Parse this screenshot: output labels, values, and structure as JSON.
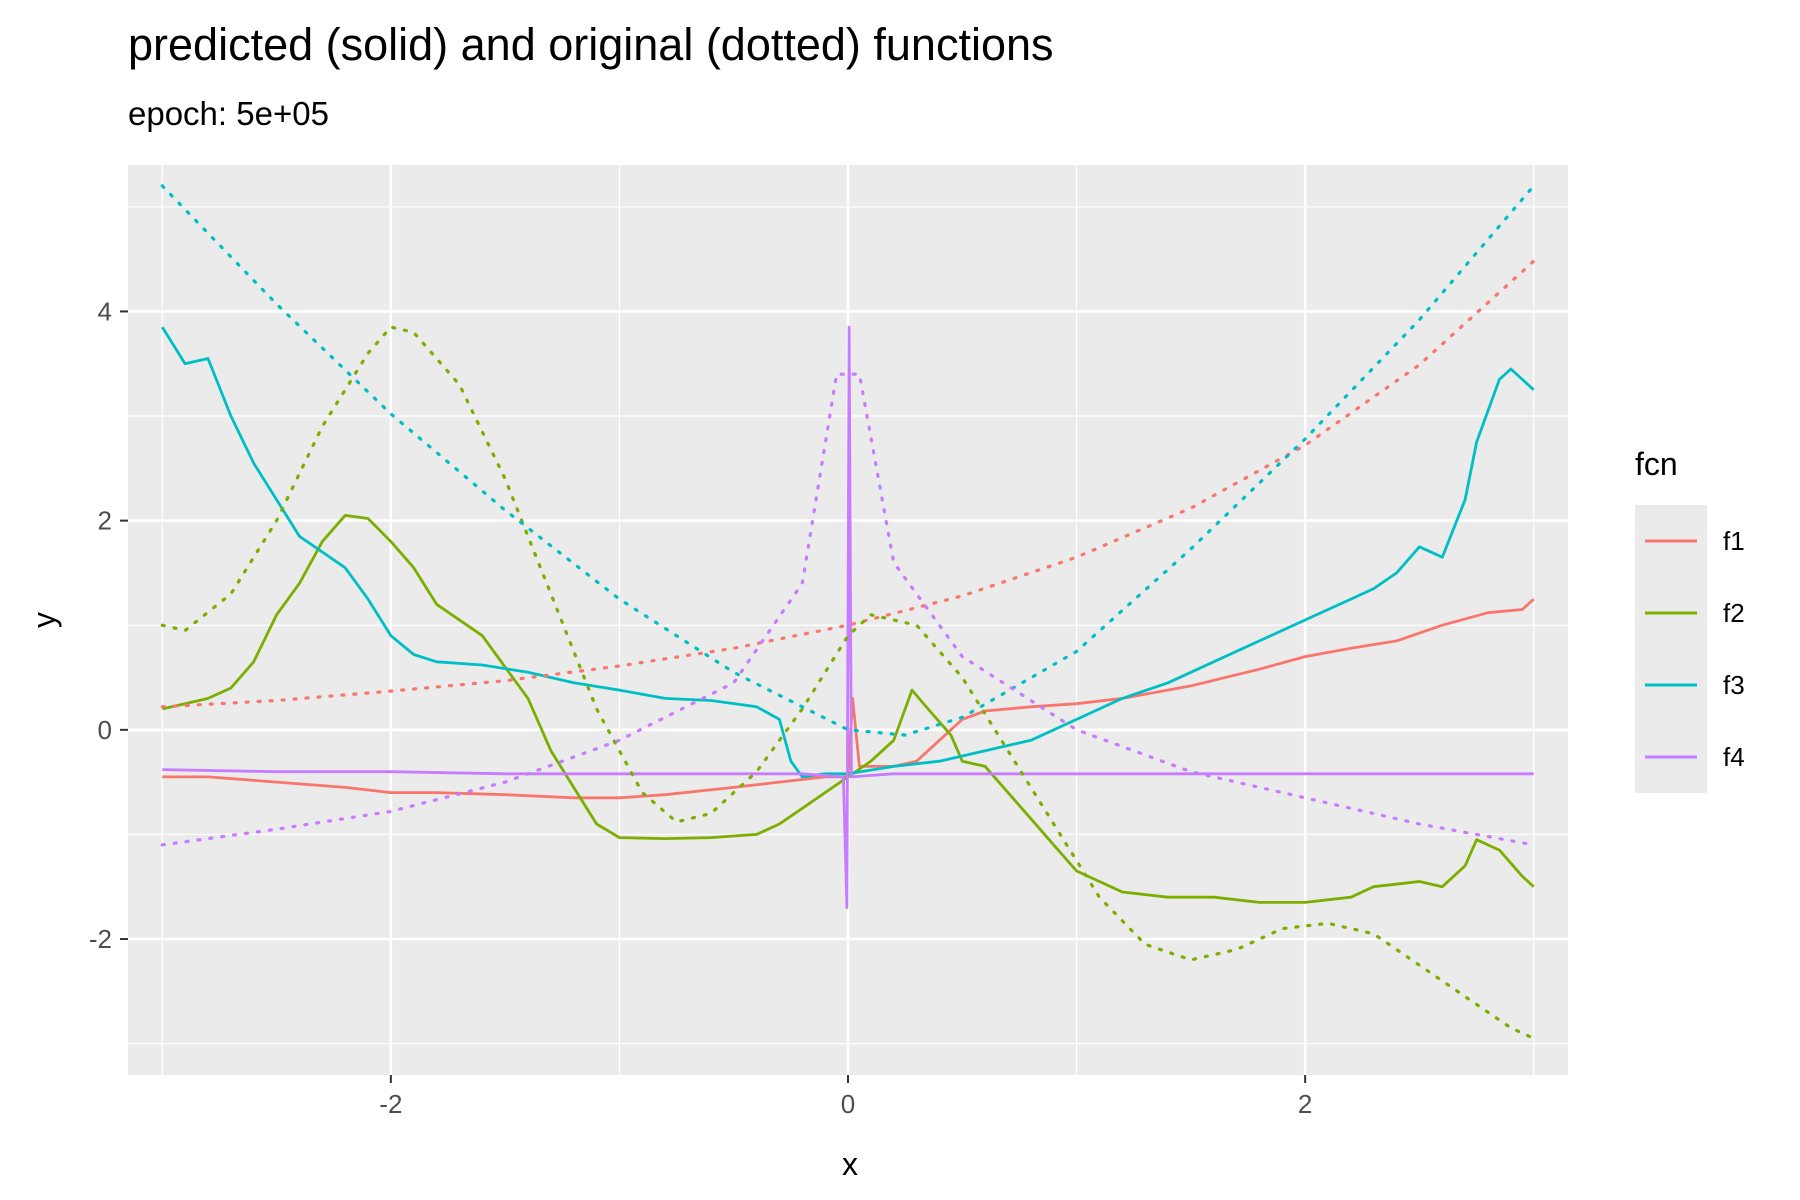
{
  "chart_data": {
    "type": "line",
    "title": "predicted (solid) and original (dotted) functions",
    "subtitle": "epoch: 5e+05",
    "xlabel": "x",
    "ylabel": "y",
    "xlim": [
      -3.15,
      3.15
    ],
    "ylim": [
      -3.3,
      5.4
    ],
    "x_ticks": [
      -2,
      0,
      2
    ],
    "x_tick_labels": [
      "-2",
      "0",
      "2"
    ],
    "y_ticks": [
      -2,
      0,
      2,
      4
    ],
    "y_tick_labels": [
      "-2",
      "0",
      "2",
      "4"
    ],
    "grid": true,
    "legend": {
      "title": "fcn",
      "position": "right"
    },
    "colors": {
      "f1": "#F8766D",
      "f2": "#7CAE00",
      "f3": "#00BFC4",
      "f4": "#C77CFF"
    },
    "series": [
      {
        "name": "f1",
        "style": "solid",
        "points": [
          [
            -3,
            -0.45
          ],
          [
            -2.8,
            -0.45
          ],
          [
            -2.5,
            -0.5
          ],
          [
            -2.2,
            -0.55
          ],
          [
            -2.0,
            -0.6
          ],
          [
            -1.8,
            -0.6
          ],
          [
            -1.5,
            -0.62
          ],
          [
            -1.2,
            -0.65
          ],
          [
            -1.0,
            -0.65
          ],
          [
            -0.8,
            -0.62
          ],
          [
            -0.5,
            -0.55
          ],
          [
            -0.3,
            -0.5
          ],
          [
            -0.1,
            -0.45
          ],
          [
            0,
            -0.45
          ],
          [
            0.02,
            0.3
          ],
          [
            0.05,
            -0.35
          ],
          [
            0.2,
            -0.35
          ],
          [
            0.3,
            -0.3
          ],
          [
            0.4,
            -0.1
          ],
          [
            0.5,
            0.1
          ],
          [
            0.6,
            0.18
          ],
          [
            0.8,
            0.22
          ],
          [
            1.0,
            0.25
          ],
          [
            1.2,
            0.3
          ],
          [
            1.5,
            0.42
          ],
          [
            1.8,
            0.58
          ],
          [
            2.0,
            0.7
          ],
          [
            2.2,
            0.78
          ],
          [
            2.4,
            0.85
          ],
          [
            2.6,
            1.0
          ],
          [
            2.8,
            1.12
          ],
          [
            2.95,
            1.15
          ],
          [
            3.0,
            1.25
          ]
        ]
      },
      {
        "name": "f2",
        "style": "solid",
        "points": [
          [
            -3,
            0.2
          ],
          [
            -2.9,
            0.25
          ],
          [
            -2.8,
            0.3
          ],
          [
            -2.7,
            0.4
          ],
          [
            -2.6,
            0.65
          ],
          [
            -2.5,
            1.1
          ],
          [
            -2.4,
            1.4
          ],
          [
            -2.3,
            1.8
          ],
          [
            -2.2,
            2.05
          ],
          [
            -2.1,
            2.02
          ],
          [
            -2.0,
            1.8
          ],
          [
            -1.9,
            1.55
          ],
          [
            -1.8,
            1.2
          ],
          [
            -1.6,
            0.9
          ],
          [
            -1.5,
            0.6
          ],
          [
            -1.4,
            0.3
          ],
          [
            -1.3,
            -0.2
          ],
          [
            -1.2,
            -0.55
          ],
          [
            -1.1,
            -0.9
          ],
          [
            -1.0,
            -1.03
          ],
          [
            -0.8,
            -1.04
          ],
          [
            -0.6,
            -1.03
          ],
          [
            -0.4,
            -1.0
          ],
          [
            -0.3,
            -0.9
          ],
          [
            -0.2,
            -0.75
          ],
          [
            -0.1,
            -0.6
          ],
          [
            0,
            -0.45
          ],
          [
            0.1,
            -0.3
          ],
          [
            0.2,
            -0.1
          ],
          [
            0.28,
            0.38
          ],
          [
            0.35,
            0.2
          ],
          [
            0.45,
            -0.05
          ],
          [
            0.5,
            -0.3
          ],
          [
            0.6,
            -0.35
          ],
          [
            0.7,
            -0.6
          ],
          [
            0.8,
            -0.85
          ],
          [
            0.9,
            -1.1
          ],
          [
            1.0,
            -1.35
          ],
          [
            1.2,
            -1.55
          ],
          [
            1.4,
            -1.6
          ],
          [
            1.6,
            -1.6
          ],
          [
            1.8,
            -1.65
          ],
          [
            2.0,
            -1.65
          ],
          [
            2.2,
            -1.6
          ],
          [
            2.3,
            -1.5
          ],
          [
            2.5,
            -1.45
          ],
          [
            2.6,
            -1.5
          ],
          [
            2.7,
            -1.3
          ],
          [
            2.75,
            -1.05
          ],
          [
            2.85,
            -1.15
          ],
          [
            2.95,
            -1.4
          ],
          [
            3.0,
            -1.5
          ]
        ]
      },
      {
        "name": "f3",
        "style": "solid",
        "points": [
          [
            -3,
            3.85
          ],
          [
            -2.9,
            3.5
          ],
          [
            -2.8,
            3.55
          ],
          [
            -2.7,
            3.0
          ],
          [
            -2.6,
            2.55
          ],
          [
            -2.5,
            2.2
          ],
          [
            -2.4,
            1.85
          ],
          [
            -2.3,
            1.7
          ],
          [
            -2.2,
            1.55
          ],
          [
            -2.1,
            1.25
          ],
          [
            -2.0,
            0.9
          ],
          [
            -1.9,
            0.72
          ],
          [
            -1.8,
            0.65
          ],
          [
            -1.6,
            0.62
          ],
          [
            -1.4,
            0.55
          ],
          [
            -1.2,
            0.45
          ],
          [
            -1.0,
            0.38
          ],
          [
            -0.8,
            0.3
          ],
          [
            -0.6,
            0.28
          ],
          [
            -0.4,
            0.22
          ],
          [
            -0.3,
            0.1
          ],
          [
            -0.25,
            -0.3
          ],
          [
            -0.2,
            -0.45
          ],
          [
            -0.1,
            -0.42
          ],
          [
            0,
            -0.42
          ],
          [
            0.2,
            -0.35
          ],
          [
            0.4,
            -0.3
          ],
          [
            0.6,
            -0.2
          ],
          [
            0.8,
            -0.1
          ],
          [
            1.0,
            0.1
          ],
          [
            1.2,
            0.3
          ],
          [
            1.4,
            0.45
          ],
          [
            1.6,
            0.65
          ],
          [
            1.8,
            0.85
          ],
          [
            2.0,
            1.05
          ],
          [
            2.2,
            1.25
          ],
          [
            2.3,
            1.35
          ],
          [
            2.4,
            1.5
          ],
          [
            2.5,
            1.75
          ],
          [
            2.6,
            1.65
          ],
          [
            2.7,
            2.2
          ],
          [
            2.75,
            2.75
          ],
          [
            2.85,
            3.35
          ],
          [
            2.9,
            3.45
          ],
          [
            2.95,
            3.35
          ],
          [
            3.0,
            3.25
          ]
        ]
      },
      {
        "name": "f4",
        "style": "solid",
        "points": [
          [
            -3,
            -0.38
          ],
          [
            -2.5,
            -0.4
          ],
          [
            -2.0,
            -0.4
          ],
          [
            -1.5,
            -0.42
          ],
          [
            -1.0,
            -0.42
          ],
          [
            -0.5,
            -0.42
          ],
          [
            -0.2,
            -0.42
          ],
          [
            -0.02,
            -0.45
          ],
          [
            -0.005,
            -1.7
          ],
          [
            0.005,
            3.85
          ],
          [
            0.015,
            -0.45
          ],
          [
            0.2,
            -0.42
          ],
          [
            0.5,
            -0.42
          ],
          [
            1.0,
            -0.42
          ],
          [
            1.5,
            -0.42
          ],
          [
            2.0,
            -0.42
          ],
          [
            2.5,
            -0.42
          ],
          [
            3.0,
            -0.42
          ]
        ]
      },
      {
        "name": "f1",
        "style": "dotted",
        "points": [
          [
            -3,
            0.22
          ],
          [
            -2.5,
            0.28
          ],
          [
            -2,
            0.37
          ],
          [
            -1.5,
            0.47
          ],
          [
            -1,
            0.61
          ],
          [
            -0.5,
            0.78
          ],
          [
            0,
            1.0
          ],
          [
            0.5,
            1.28
          ],
          [
            1,
            1.65
          ],
          [
            1.5,
            2.12
          ],
          [
            2,
            2.72
          ],
          [
            2.5,
            3.49
          ],
          [
            3,
            4.48
          ]
        ]
      },
      {
        "name": "f2",
        "style": "dotted",
        "points": [
          [
            -3,
            1.0
          ],
          [
            -2.9,
            0.95
          ],
          [
            -2.7,
            1.3
          ],
          [
            -2.5,
            2.0
          ],
          [
            -2.3,
            2.9
          ],
          [
            -2.1,
            3.6
          ],
          [
            -2.0,
            3.85
          ],
          [
            -1.9,
            3.8
          ],
          [
            -1.7,
            3.3
          ],
          [
            -1.5,
            2.4
          ],
          [
            -1.3,
            1.3
          ],
          [
            -1.1,
            0.2
          ],
          [
            -0.9,
            -0.6
          ],
          [
            -0.75,
            -0.88
          ],
          [
            -0.6,
            -0.8
          ],
          [
            -0.4,
            -0.4
          ],
          [
            -0.2,
            0.2
          ],
          [
            0,
            0.9
          ],
          [
            0.1,
            1.1
          ],
          [
            0.3,
            1.0
          ],
          [
            0.5,
            0.5
          ],
          [
            0.7,
            -0.2
          ],
          [
            0.9,
            -0.9
          ],
          [
            1.1,
            -1.6
          ],
          [
            1.3,
            -2.05
          ],
          [
            1.5,
            -2.2
          ],
          [
            1.7,
            -2.1
          ],
          [
            1.9,
            -1.9
          ],
          [
            2.1,
            -1.85
          ],
          [
            2.3,
            -1.95
          ],
          [
            2.5,
            -2.25
          ],
          [
            2.7,
            -2.55
          ],
          [
            2.9,
            -2.85
          ],
          [
            3.0,
            -2.95
          ]
        ]
      },
      {
        "name": "f3",
        "style": "dotted",
        "points": [
          [
            -3,
            5.2
          ],
          [
            -2.5,
            4.07
          ],
          [
            -2,
            3.02
          ],
          [
            -1.5,
            2.1
          ],
          [
            -1,
            1.25
          ],
          [
            -0.5,
            0.55
          ],
          [
            0,
            0.0
          ],
          [
            0.25,
            -0.05
          ],
          [
            0.5,
            0.12
          ],
          [
            1,
            0.75
          ],
          [
            1.5,
            1.73
          ],
          [
            2,
            2.78
          ],
          [
            2.5,
            3.92
          ],
          [
            3,
            5.2
          ]
        ]
      },
      {
        "name": "f4",
        "style": "dotted",
        "points": [
          [
            -3,
            -1.1
          ],
          [
            -2.5,
            -0.95
          ],
          [
            -2,
            -0.78
          ],
          [
            -1.5,
            -0.5
          ],
          [
            -1,
            -0.1
          ],
          [
            -0.5,
            0.45
          ],
          [
            -0.2,
            1.4
          ],
          [
            -0.05,
            3.4
          ],
          [
            0,
            3.4
          ],
          [
            0.05,
            3.4
          ],
          [
            0.2,
            1.6
          ],
          [
            0.5,
            0.7
          ],
          [
            1.0,
            0.0
          ],
          [
            1.5,
            -0.4
          ],
          [
            2.0,
            -0.65
          ],
          [
            2.5,
            -0.9
          ],
          [
            3.0,
            -1.1
          ]
        ]
      }
    ]
  }
}
